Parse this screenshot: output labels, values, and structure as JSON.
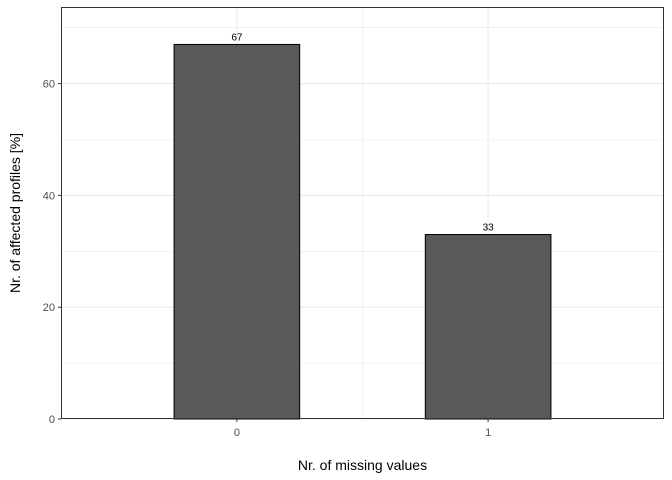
{
  "chart_data": {
    "type": "bar",
    "categories": [
      "0",
      "1"
    ],
    "values": [
      67,
      33
    ],
    "data_labels": [
      "67",
      "33"
    ],
    "title": "",
    "xlabel": "Nr. of missing values",
    "ylabel": "Nr. of affected profiles [%]",
    "ylim": [
      0,
      73.7
    ],
    "y_ticks": [
      0,
      20,
      40,
      60
    ],
    "grid": true,
    "bar_fill": "#595959",
    "bar_stroke": "#000000",
    "grid_color": "#ebebeb"
  }
}
